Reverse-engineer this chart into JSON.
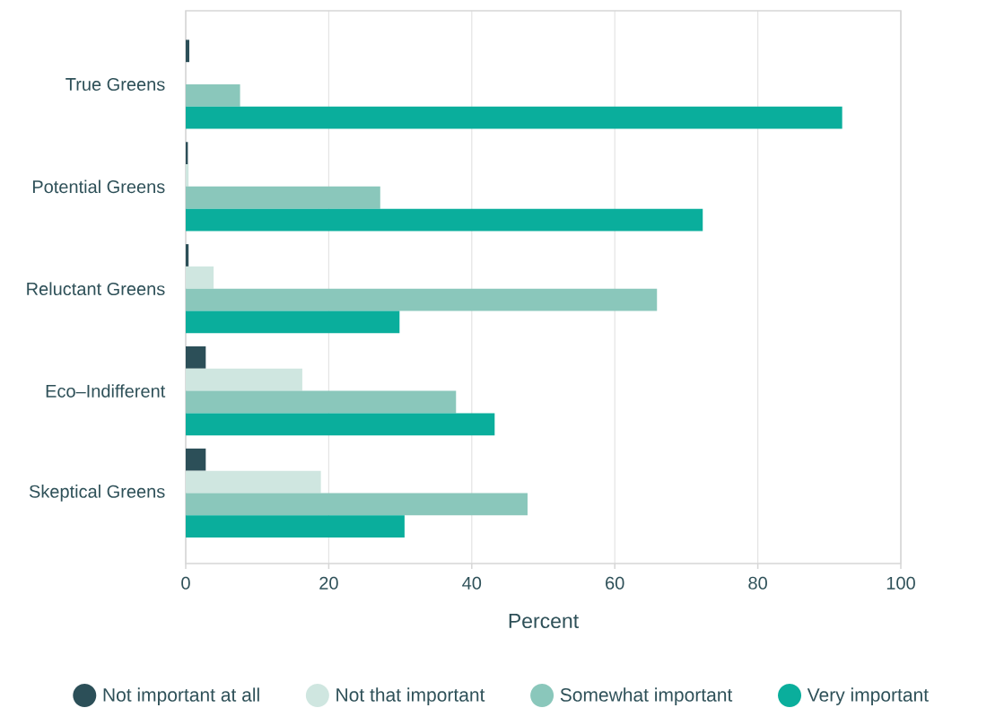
{
  "chart_data": {
    "type": "bar",
    "orientation": "horizontal",
    "xlabel": "Percent",
    "categories": [
      "True Greens",
      "Potential Greens",
      "Reluctant Greens",
      "Eco–Indifferent",
      "Skeptical Greens"
    ],
    "series": [
      {
        "name": "Not important at all",
        "color": "#2c4f58",
        "values": [
          0.5,
          0.3,
          0.4,
          2.8,
          2.8
        ]
      },
      {
        "name": "Not that important",
        "color": "#cfe6e0",
        "values": [
          0,
          0.4,
          3.9,
          16.3,
          18.9
        ]
      },
      {
        "name": "Somewhat important",
        "color": "#8ac7bb",
        "values": [
          7.6,
          27.2,
          65.9,
          37.8,
          47.8
        ]
      },
      {
        "name": "Very important",
        "color": "#0aae9c",
        "values": [
          91.8,
          72.3,
          29.9,
          43.2,
          30.6
        ]
      }
    ],
    "xlim": [
      0,
      100
    ],
    "xticks": [
      0,
      20,
      40,
      60,
      80,
      100
    ],
    "grid": "x",
    "legend": "bottom"
  }
}
